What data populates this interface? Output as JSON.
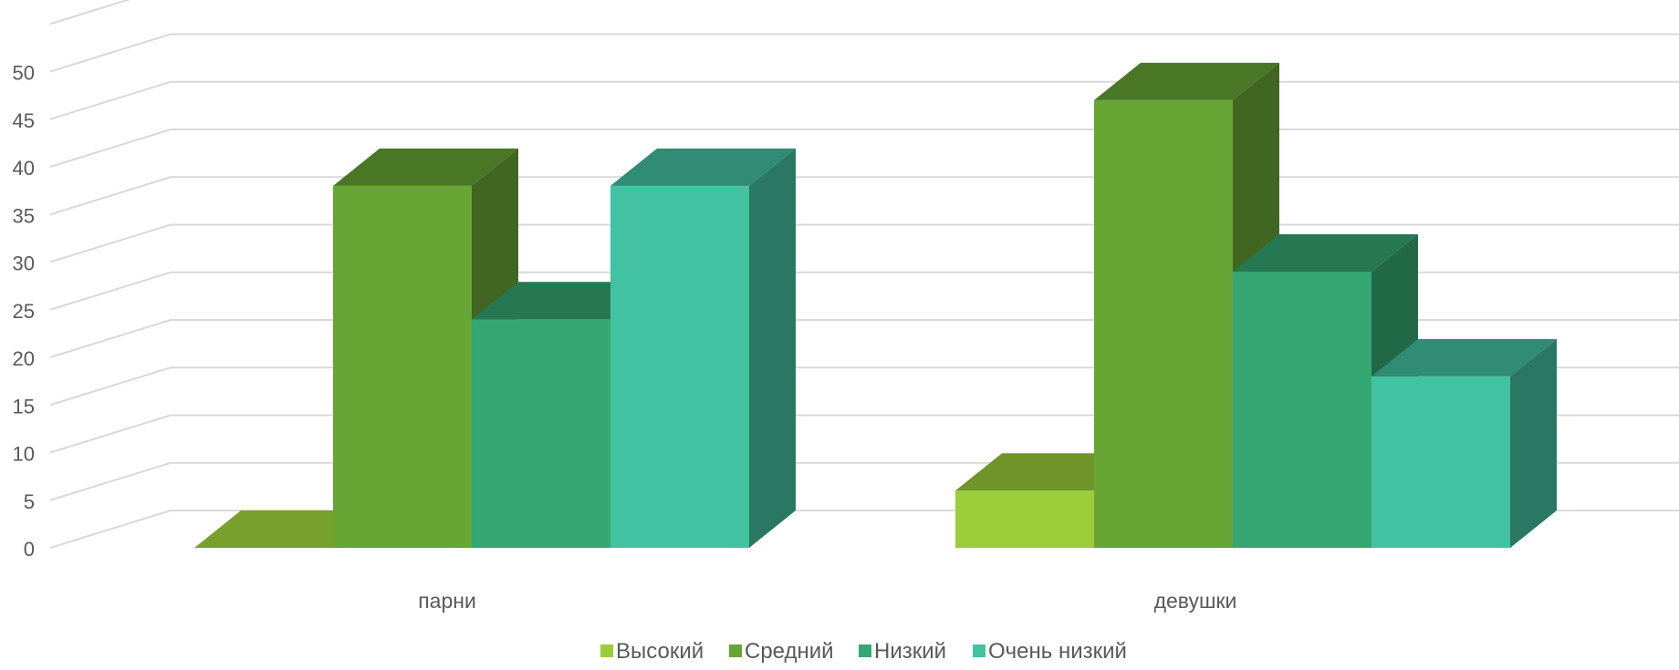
{
  "chart_data": {
    "type": "bar",
    "variant": "3d-clustered-column",
    "categories": [
      "парни",
      "девушки"
    ],
    "series": [
      {
        "name": "Высокий",
        "values": [
          0,
          6
        ],
        "color": "#9acd39"
      },
      {
        "name": "Средний",
        "values": [
          38,
          47
        ],
        "color": "#67a535"
      },
      {
        "name": "Низкий",
        "values": [
          24,
          29
        ],
        "color": "#35a772"
      },
      {
        "name": "Очень низкий",
        "values": [
          38,
          18
        ],
        "color": "#43c2a2"
      }
    ],
    "ylim": [
      0,
      50
    ],
    "yticks": [
      "0",
      "5",
      "10",
      "15",
      "20",
      "25",
      "30",
      "35",
      "40",
      "45",
      "50"
    ],
    "grid": true,
    "legend_position": "bottom"
  }
}
